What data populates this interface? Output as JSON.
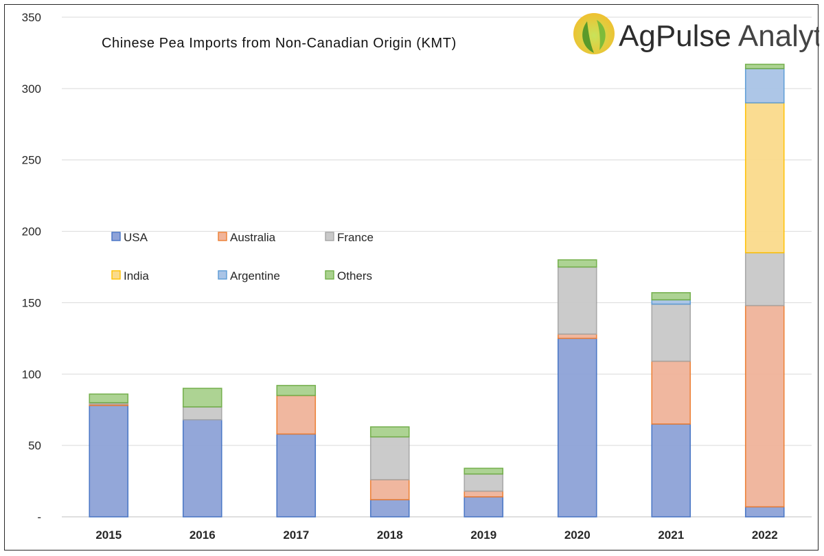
{
  "chart_data": {
    "type": "bar",
    "stacked": true,
    "title": "Chinese Pea Imports from Non-Canadian Origin (KMT)",
    "xlabel": "",
    "ylabel": "",
    "categories": [
      "2015",
      "2016",
      "2017",
      "2018",
      "2019",
      "2020",
      "2021",
      "2022"
    ],
    "ylim": [
      0,
      350
    ],
    "yticks": [
      0,
      50,
      100,
      150,
      200,
      250,
      300,
      350
    ],
    "ytick_labels": [
      "-",
      "50",
      "100",
      "150",
      "200",
      "250",
      "300",
      "350"
    ],
    "grid": true,
    "legend_position": "center-left",
    "series": [
      {
        "name": "USA",
        "color": "#8EA3D8",
        "edge": "#4472C4",
        "values": [
          78,
          68,
          58,
          12,
          14,
          125,
          65,
          7
        ]
      },
      {
        "name": "Australia",
        "color": "#F0B49A",
        "edge": "#ED7D31",
        "values": [
          1,
          0,
          27,
          14,
          4,
          3,
          44,
          141
        ]
      },
      {
        "name": "France",
        "color": "#C9C9C9",
        "edge": "#A5A5A5",
        "values": [
          1,
          9,
          0,
          30,
          12,
          47,
          40,
          37
        ]
      },
      {
        "name": "India",
        "color": "#FADB8C",
        "edge": "#FFC000",
        "values": [
          0,
          0,
          0,
          0,
          0,
          0,
          0,
          105
        ]
      },
      {
        "name": "Argentine",
        "color": "#A9C4E6",
        "edge": "#5B9BD5",
        "values": [
          0,
          0,
          0,
          0,
          0,
          0,
          3,
          24
        ]
      },
      {
        "name": "Others",
        "color": "#A9D18E",
        "edge": "#70AD47",
        "values": [
          6,
          13,
          7,
          7,
          4,
          5,
          5,
          3
        ]
      }
    ]
  },
  "logo": {
    "brand": "AgPulse Analytica",
    "brand_part1": "AgPulse",
    "brand_part2": "Analytica",
    "icon": "leaf-logo-icon"
  }
}
